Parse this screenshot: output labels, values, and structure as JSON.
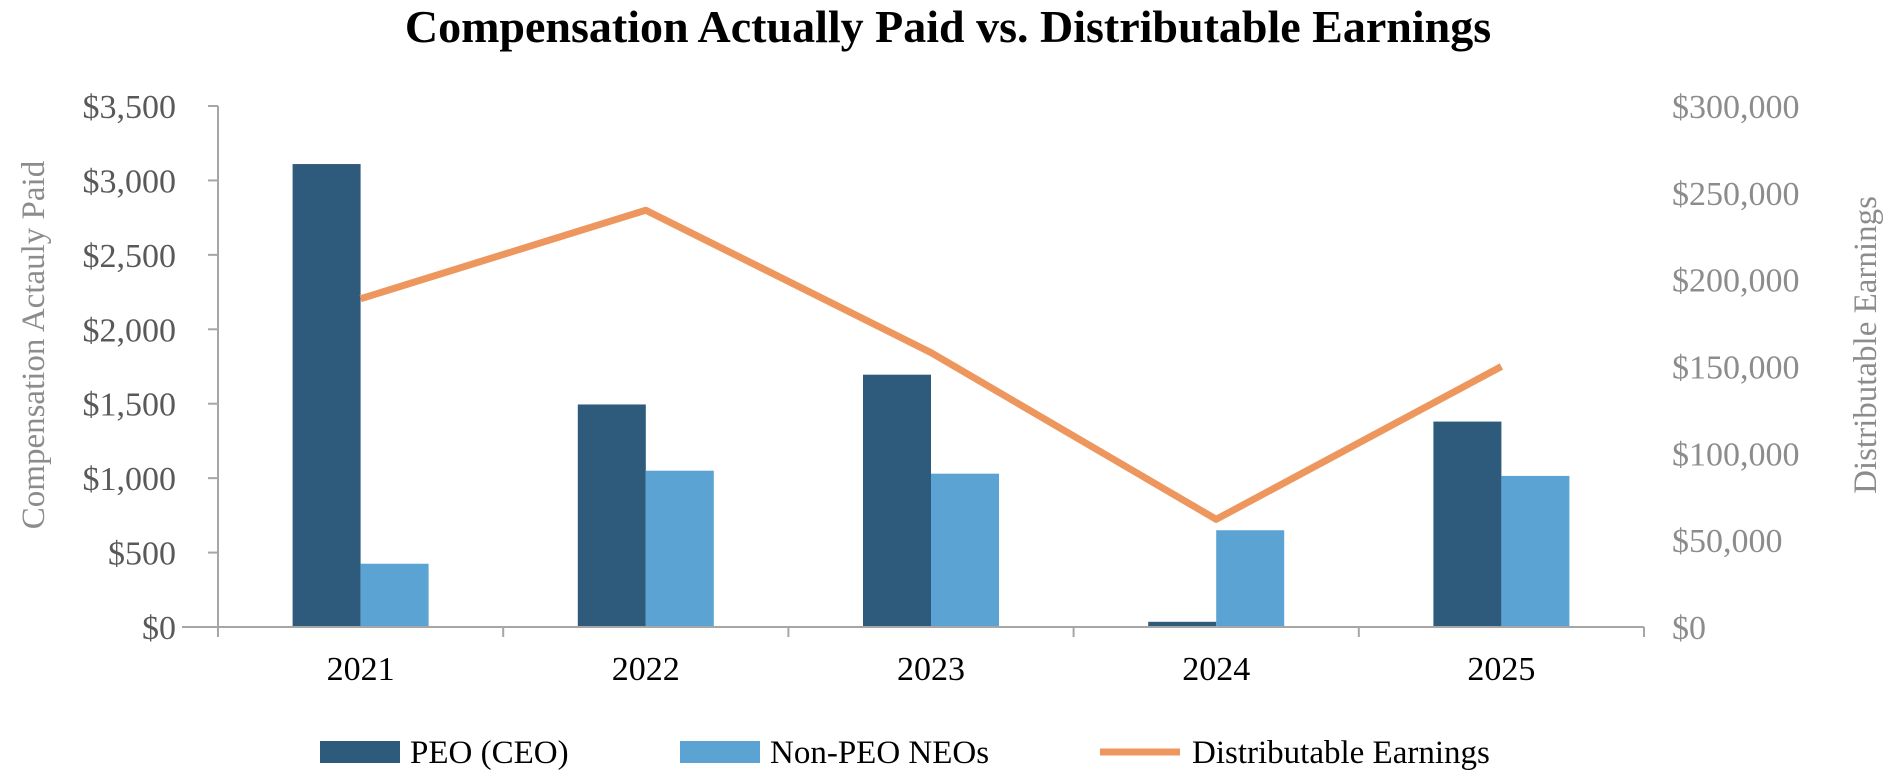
{
  "chart_data": {
    "type": "bar",
    "title": "Compensation Actually Paid vs. Distributable Earnings",
    "categories": [
      "2021",
      "2022",
      "2023",
      "2024",
      "2025"
    ],
    "ylabel": "Compensation Actauly Paid",
    "y2label": "Distributable Earnings",
    "ylim": [
      0,
      3500
    ],
    "y2lim": [
      0,
      300000
    ],
    "yticks": [
      "$0",
      "$500",
      "$1,000",
      "$1,500",
      "$2,000",
      "$2,500",
      "$3,000",
      "$3,500"
    ],
    "y2ticks": [
      "$0",
      "$50,000",
      "$100,000",
      "$150,000",
      "$200,000",
      "$250,000",
      "$300,000"
    ],
    "series": [
      {
        "name": "PEO (CEO)",
        "type": "bar",
        "axis": "left",
        "color": "#2e5a7c",
        "values": [
          3110,
          1495,
          1695,
          35,
          1380
        ]
      },
      {
        "name": "Non-PEO NEOs",
        "type": "bar",
        "axis": "left",
        "color": "#5ba3d3",
        "values": [
          425,
          1050,
          1030,
          650,
          1015
        ]
      },
      {
        "name": "Distributable Earnings",
        "type": "line",
        "axis": "right",
        "color": "#ed975f",
        "values": [
          189000,
          240000,
          158000,
          62000,
          150000
        ]
      }
    ],
    "grid": false,
    "legend": "bottom"
  }
}
